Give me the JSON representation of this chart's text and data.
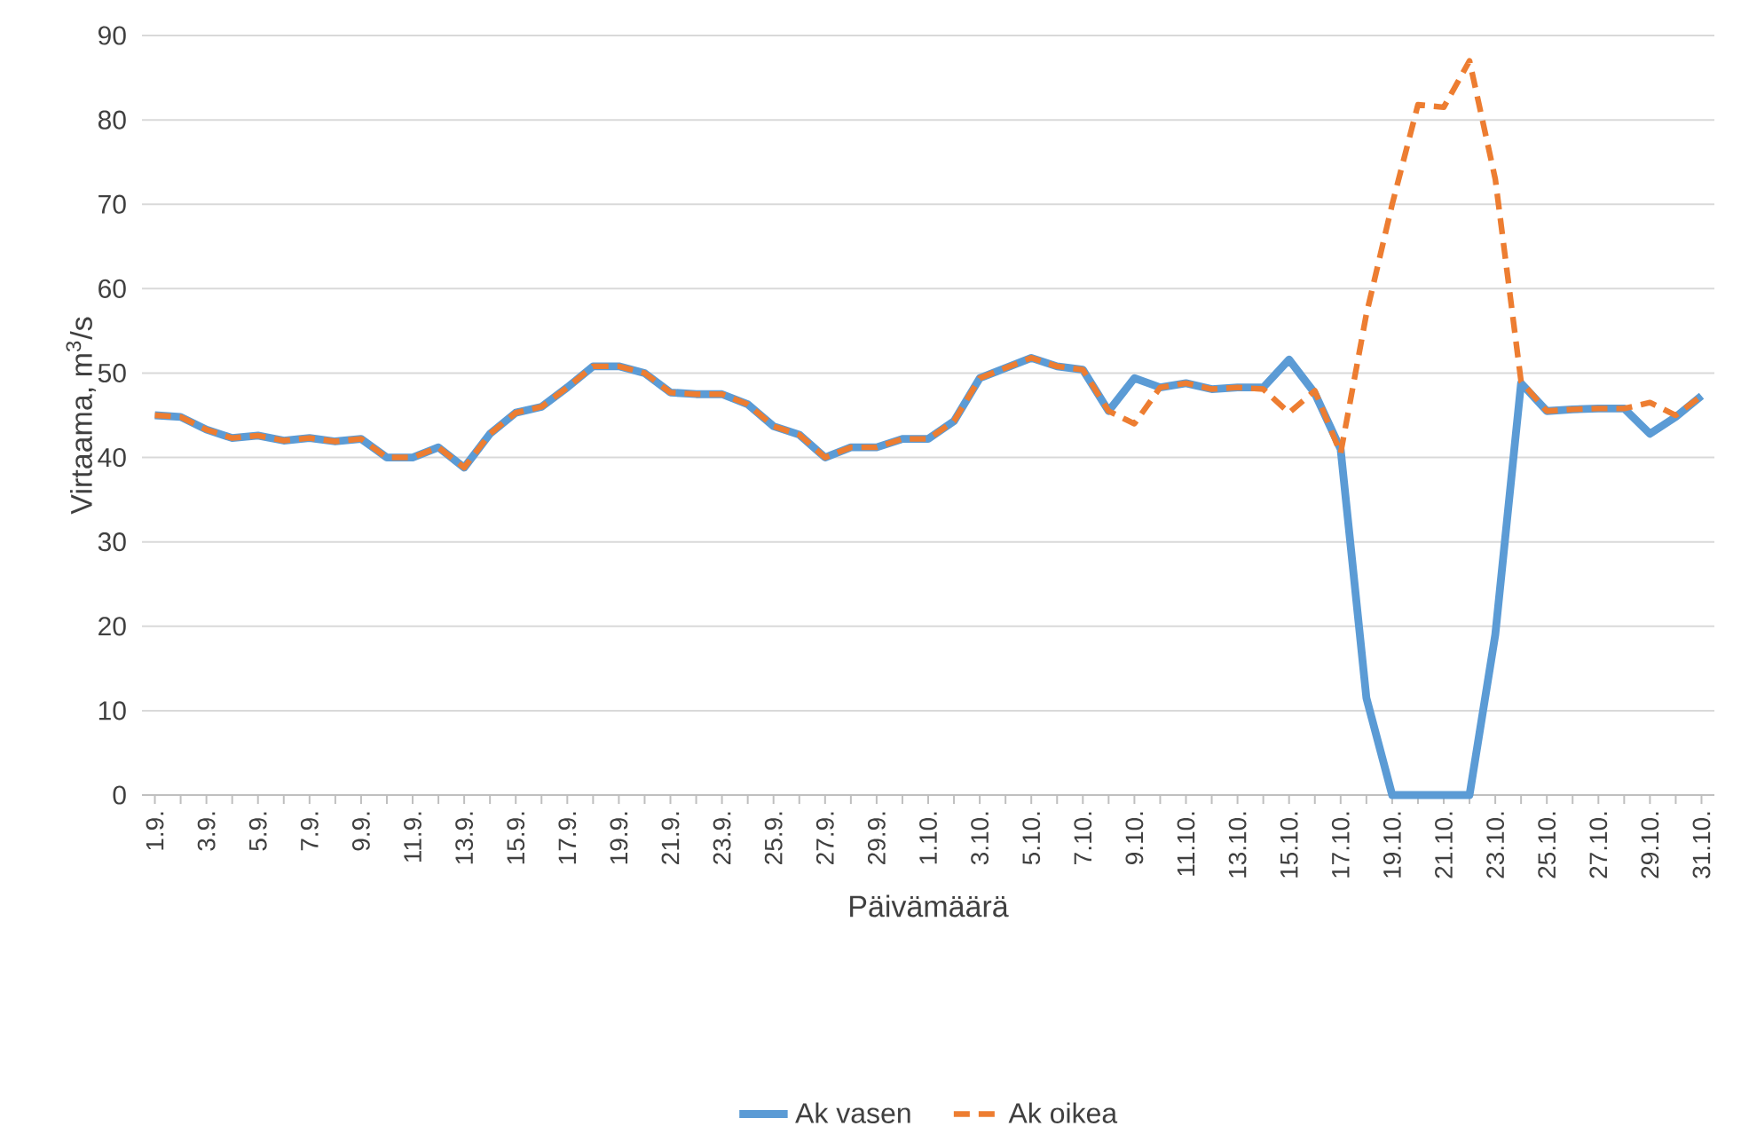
{
  "chart_data": {
    "type": "line",
    "xlabel": "Päivämäärä",
    "ylabel": "Virtaama, m$^{3}$/s",
    "categories": [
      "1.9.",
      null,
      "3.9.",
      null,
      "5.9.",
      null,
      "7.9.",
      null,
      "9.9.",
      null,
      "11.9.",
      null,
      "13.9.",
      null,
      "15.9.",
      null,
      "17.9.",
      null,
      "19.9.",
      null,
      "21.9.",
      null,
      "23.9.",
      null,
      "25.9.",
      null,
      "27.9.",
      null,
      "29.9.",
      null,
      "1.10.",
      null,
      "3.10.",
      null,
      "5.10.",
      null,
      "7.10.",
      null,
      "9.10.",
      null,
      "11.10.",
      null,
      "13.10.",
      null,
      "15.10.",
      null,
      "17.10.",
      null,
      "19.10.",
      null,
      "21.10.",
      null,
      "23.10.",
      null,
      "25.10.",
      null,
      "27.10.",
      null,
      "29.10.",
      null,
      "31.10."
    ],
    "series": [
      {
        "name": "Ak vasen",
        "color": "#5b9bd5",
        "line_style": "solid",
        "values": [
          45,
          44.8,
          43.3,
          42.3,
          42.6,
          42,
          42.3,
          41.9,
          42.2,
          40,
          40,
          41.2,
          38.8,
          42.8,
          45.3,
          46,
          48.3,
          50.8,
          50.8,
          50,
          47.7,
          47.5,
          47.5,
          46.3,
          43.7,
          42.7,
          40,
          41.2,
          41.2,
          42.2,
          42.2,
          44.3,
          49.4,
          50.6,
          51.8,
          50.8,
          50.4,
          45.5,
          49.4,
          48.3,
          48.8,
          48.1,
          48.3,
          48.3,
          51.6,
          47.6,
          41,
          11.5,
          0,
          0,
          0,
          0,
          19,
          48.8,
          45.5,
          45.7,
          45.8,
          45.8,
          42.8,
          44.8,
          47.3
        ]
      },
      {
        "name": "Ak oikea",
        "color": "#ed7d31",
        "line_style": "dashed",
        "values": [
          45,
          44.8,
          43.3,
          42.3,
          42.6,
          42,
          42.3,
          41.9,
          42.2,
          40,
          40,
          41.2,
          38.8,
          42.8,
          45.3,
          46,
          48.3,
          50.8,
          50.8,
          50,
          47.7,
          47.5,
          47.5,
          46.3,
          43.7,
          42.7,
          40,
          41.2,
          41.2,
          42.2,
          42.2,
          44.3,
          49.4,
          50.6,
          51.8,
          50.8,
          50.4,
          45.5,
          44,
          48.3,
          48.8,
          48.1,
          48.3,
          48.1,
          45.3,
          47.9,
          40.5,
          57,
          70,
          81.8,
          81.5,
          87,
          73,
          49,
          45.5,
          45.7,
          45.8,
          45.8,
          46.5,
          45,
          47.3
        ]
      }
    ],
    "ylim": [
      0,
      90
    ],
    "yticks": [
      0,
      10,
      20,
      30,
      40,
      50,
      60,
      70,
      80,
      90
    ],
    "grid": "y",
    "legend": "bottom",
    "marker": "none"
  }
}
